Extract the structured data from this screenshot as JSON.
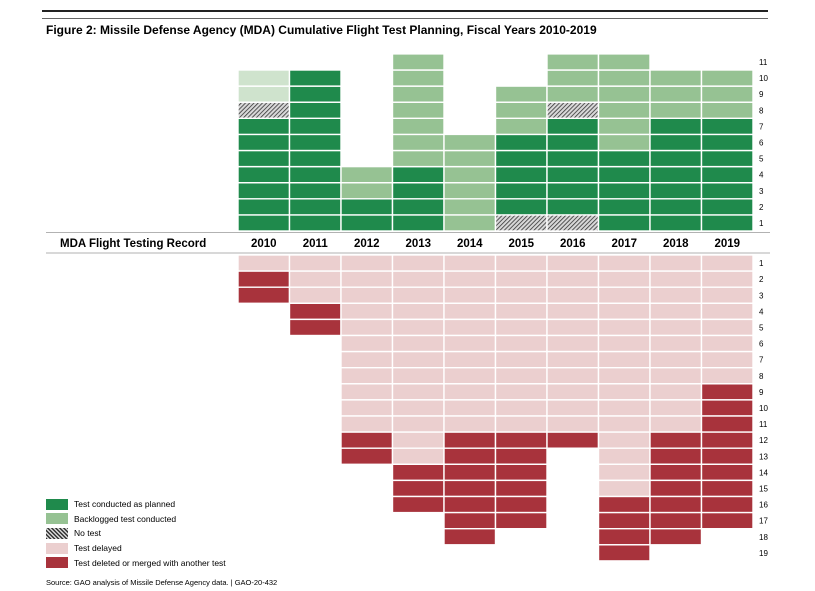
{
  "figure": {
    "title": "Figure 2: Missile Defense Agency (MDA) Cumulative Flight Test Planning, Fiscal Years 2010-2019",
    "source": "Source: GAO analysis of Missile Defense Agency data.  |  GAO-20-432"
  },
  "colors": {
    "planned": "#1f8a4c",
    "backlogged": "#96c293",
    "backlogged_light": "#cfe3cd",
    "no_test": "hatch",
    "delayed": "#ebcfcf",
    "deleted": "#a8333c"
  },
  "legend": [
    {
      "key": "planned",
      "label": "Test conducted as planned"
    },
    {
      "key": "backlogged",
      "label": "Backlogged test conducted"
    },
    {
      "key": "no_test",
      "label": "No test"
    },
    {
      "key": "delayed",
      "label": "Test delayed"
    },
    {
      "key": "deleted",
      "label": "Test deleted or merged with another test"
    }
  ],
  "chart_data": {
    "type": "heatmap",
    "row_label": "MDA Flight Testing Record",
    "categories": [
      "2010",
      "2011",
      "2012",
      "2013",
      "2014",
      "2015",
      "2016",
      "2017",
      "2018",
      "2019"
    ],
    "top_ticks": [
      1,
      2,
      3,
      4,
      5,
      6,
      7,
      8,
      9,
      10,
      11
    ],
    "bottom_ticks": [
      1,
      2,
      3,
      4,
      5,
      6,
      7,
      8,
      9,
      10,
      11,
      12,
      13,
      14,
      15,
      16,
      17,
      18,
      19
    ],
    "conducted_tests": [
      {
        "year": "2010",
        "tests": [
          "planned",
          "planned",
          "planned",
          "planned",
          "planned",
          "planned",
          "planned",
          "no_test",
          "backlogged_light",
          "backlogged_light"
        ]
      },
      {
        "year": "2011",
        "tests": [
          "planned",
          "planned",
          "planned",
          "planned",
          "planned",
          "planned",
          "planned",
          "planned",
          "planned",
          "planned"
        ]
      },
      {
        "year": "2012",
        "tests": [
          "planned",
          "planned",
          "backlogged",
          "backlogged"
        ]
      },
      {
        "year": "2013",
        "tests": [
          "planned",
          "planned",
          "planned",
          "planned",
          "backlogged",
          "backlogged",
          "backlogged",
          "backlogged",
          "backlogged",
          "backlogged",
          "backlogged"
        ]
      },
      {
        "year": "2014",
        "tests": [
          "backlogged",
          "backlogged",
          "backlogged",
          "backlogged",
          "backlogged",
          "backlogged"
        ]
      },
      {
        "year": "2015",
        "tests": [
          "no_test",
          "planned",
          "planned",
          "planned",
          "planned",
          "planned",
          "backlogged",
          "backlogged",
          "backlogged"
        ]
      },
      {
        "year": "2016",
        "tests": [
          "no_test",
          "planned",
          "planned",
          "planned",
          "planned",
          "planned",
          "planned",
          "no_test",
          "backlogged",
          "backlogged",
          "backlogged"
        ]
      },
      {
        "year": "2017",
        "tests": [
          "planned",
          "planned",
          "planned",
          "planned",
          "planned",
          "backlogged",
          "backlogged",
          "backlogged",
          "backlogged",
          "backlogged",
          "backlogged"
        ]
      },
      {
        "year": "2018",
        "tests": [
          "planned",
          "planned",
          "planned",
          "planned",
          "planned",
          "planned",
          "planned",
          "backlogged",
          "backlogged",
          "backlogged"
        ]
      },
      {
        "year": "2019",
        "tests": [
          "planned",
          "planned",
          "planned",
          "planned",
          "planned",
          "planned",
          "planned",
          "backlogged",
          "backlogged",
          "backlogged"
        ]
      }
    ],
    "planned_outcomes": [
      {
        "year": "2010",
        "tests": [
          "delayed",
          "deleted",
          "deleted"
        ]
      },
      {
        "year": "2011",
        "tests": [
          "delayed",
          "delayed",
          "delayed",
          "deleted",
          "deleted"
        ]
      },
      {
        "year": "2012",
        "tests": [
          "delayed",
          "delayed",
          "delayed",
          "delayed",
          "delayed",
          "delayed",
          "delayed",
          "delayed",
          "delayed",
          "delayed",
          "delayed",
          "deleted",
          "deleted"
        ]
      },
      {
        "year": "2013",
        "tests": [
          "delayed",
          "delayed",
          "delayed",
          "delayed",
          "delayed",
          "delayed",
          "delayed",
          "delayed",
          "delayed",
          "delayed",
          "delayed",
          "delayed",
          "delayed",
          "deleted",
          "deleted",
          "deleted"
        ]
      },
      {
        "year": "2014",
        "tests": [
          "delayed",
          "delayed",
          "delayed",
          "delayed",
          "delayed",
          "delayed",
          "delayed",
          "delayed",
          "delayed",
          "delayed",
          "delayed",
          "deleted",
          "deleted",
          "deleted",
          "deleted",
          "deleted",
          "deleted",
          "deleted"
        ]
      },
      {
        "year": "2015",
        "tests": [
          "delayed",
          "delayed",
          "delayed",
          "delayed",
          "delayed",
          "delayed",
          "delayed",
          "delayed",
          "delayed",
          "delayed",
          "delayed",
          "deleted",
          "deleted",
          "deleted",
          "deleted",
          "deleted",
          "deleted"
        ]
      },
      {
        "year": "2016",
        "tests": [
          "delayed",
          "delayed",
          "delayed",
          "delayed",
          "delayed",
          "delayed",
          "delayed",
          "delayed",
          "delayed",
          "delayed",
          "delayed",
          "deleted"
        ]
      },
      {
        "year": "2017",
        "tests": [
          "delayed",
          "delayed",
          "delayed",
          "delayed",
          "delayed",
          "delayed",
          "delayed",
          "delayed",
          "delayed",
          "delayed",
          "delayed",
          "delayed",
          "delayed",
          "delayed",
          "delayed",
          "deleted",
          "deleted",
          "deleted",
          "deleted"
        ]
      },
      {
        "year": "2018",
        "tests": [
          "delayed",
          "delayed",
          "delayed",
          "delayed",
          "delayed",
          "delayed",
          "delayed",
          "delayed",
          "delayed",
          "delayed",
          "delayed",
          "deleted",
          "deleted",
          "deleted",
          "deleted",
          "deleted",
          "deleted",
          "deleted"
        ]
      },
      {
        "year": "2019",
        "tests": [
          "delayed",
          "delayed",
          "delayed",
          "delayed",
          "delayed",
          "delayed",
          "delayed",
          "delayed",
          "deleted",
          "deleted",
          "deleted",
          "deleted",
          "deleted",
          "deleted",
          "deleted",
          "deleted",
          "deleted"
        ]
      }
    ]
  }
}
